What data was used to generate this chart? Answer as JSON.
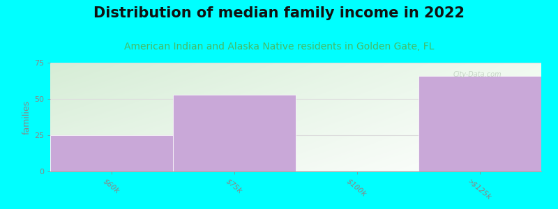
{
  "title": "Distribution of median family income in 2022",
  "subtitle": "American Indian and Alaska Native residents in Golden Gate, FL",
  "categories": [
    "$60k",
    "$75k",
    "$100k",
    ">$125k"
  ],
  "values": [
    25,
    53,
    0,
    66
  ],
  "bar_color": "#C9A8D8",
  "background_color": "#00FFFF",
  "plot_bg_color_tl": "#D6EDD6",
  "plot_bg_color_tr": "#F0F8F0",
  "plot_bg_color_bl": "#E8F5E8",
  "plot_bg_color_br": "#FAFFFE",
  "ylabel": "families",
  "ylim": [
    0,
    75
  ],
  "yticks": [
    0,
    25,
    50,
    75
  ],
  "title_fontsize": 15,
  "subtitle_fontsize": 10,
  "subtitle_color": "#44BB66",
  "watermark": "City-Data.com",
  "tick_color": "#888888",
  "grid_color": "#DDDDDD"
}
